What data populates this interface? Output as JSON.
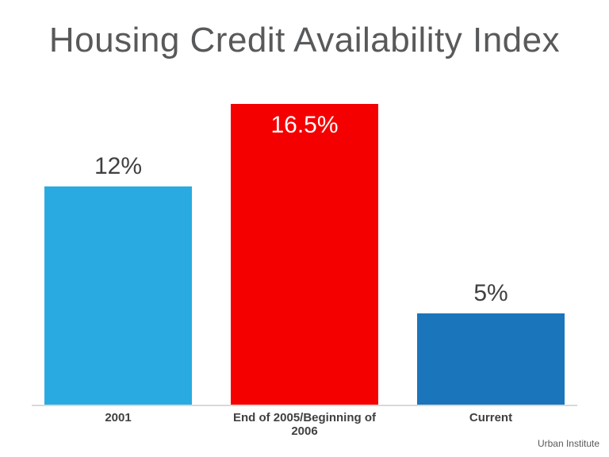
{
  "chart_data": {
    "type": "bar",
    "title": "Housing Credit Availability Index",
    "categories": [
      "2001",
      "End of 2005/Beginning of 2006",
      "Current"
    ],
    "values": [
      12,
      16.5,
      5
    ],
    "value_labels": [
      "12%",
      "16.5%",
      "5%"
    ],
    "bar_colors": [
      "#29abe2",
      "#f40000",
      "#1b75bb"
    ],
    "value_label_colors": [
      "#404040",
      "#ffffff",
      "#404040"
    ],
    "label_inside": [
      false,
      true,
      false
    ],
    "xlabel": "",
    "ylabel": "",
    "ylim": [
      0,
      17
    ],
    "grid": false,
    "legend": false,
    "source": "Urban Institute"
  },
  "colors": {
    "background": "#ffffff",
    "title_text": "#58595b",
    "category_text": "#404040",
    "baseline": "#d9d9d9",
    "source_text": "#595959"
  }
}
